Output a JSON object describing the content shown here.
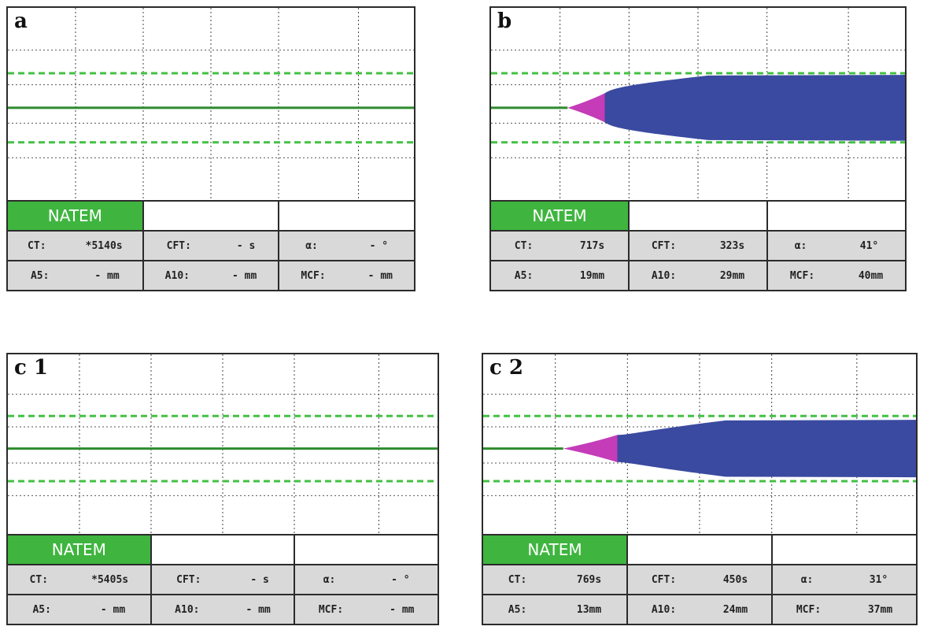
{
  "chart_data": [
    {
      "type": "area",
      "panel_label": "a",
      "test_name": "NATEM",
      "clot_visible": false,
      "metrics": {
        "ct": {
          "label": "CT:",
          "value": "*5140s"
        },
        "cft": {
          "label": "CFT:",
          "value": "- s"
        },
        "alpha": {
          "label": "α:",
          "value": "- °"
        },
        "a5": {
          "label": "A5:",
          "value": "- mm"
        },
        "a10": {
          "label": "A10:",
          "value": "- mm"
        },
        "mcf": {
          "label": "MCF:",
          "value": "- mm"
        }
      }
    },
    {
      "type": "area",
      "panel_label": "b",
      "test_name": "NATEM",
      "clot_visible": true,
      "metrics": {
        "ct": {
          "label": "CT:",
          "value": "717s"
        },
        "cft": {
          "label": "CFT:",
          "value": "323s"
        },
        "alpha": {
          "label": "α:",
          "value": "41°"
        },
        "a5": {
          "label": "A5:",
          "value": "19mm"
        },
        "a10": {
          "label": "A10:",
          "value": "29mm"
        },
        "mcf": {
          "label": "MCF:",
          "value": "40mm"
        }
      }
    },
    {
      "type": "area",
      "panel_label": "c 1",
      "test_name": "NATEM",
      "clot_visible": false,
      "metrics": {
        "ct": {
          "label": "CT:",
          "value": "*5405s"
        },
        "cft": {
          "label": "CFT:",
          "value": "- s"
        },
        "alpha": {
          "label": "α:",
          "value": "- °"
        },
        "a5": {
          "label": "A5:",
          "value": "- mm"
        },
        "a10": {
          "label": "A10:",
          "value": "- mm"
        },
        "mcf": {
          "label": "MCF:",
          "value": "- mm"
        }
      }
    },
    {
      "type": "area",
      "panel_label": "c 2",
      "test_name": "NATEM",
      "clot_visible": true,
      "metrics": {
        "ct": {
          "label": "CT:",
          "value": "769s"
        },
        "cft": {
          "label": "CFT:",
          "value": "450s"
        },
        "alpha": {
          "label": "α:",
          "value": "31°"
        },
        "a5": {
          "label": "A5:",
          "value": "13mm"
        },
        "a10": {
          "label": "A10:",
          "value": "24mm"
        },
        "mcf": {
          "label": "MCF:",
          "value": "37mm"
        }
      }
    }
  ],
  "colors": {
    "baseline": "#2e8b2e",
    "reference_dashed": "#44c044",
    "clot_initiation": "#c43cb8",
    "clot_body": "#3a4aa0",
    "header_green": "#3fb53f",
    "value_row_grey": "#d9d9d9"
  }
}
